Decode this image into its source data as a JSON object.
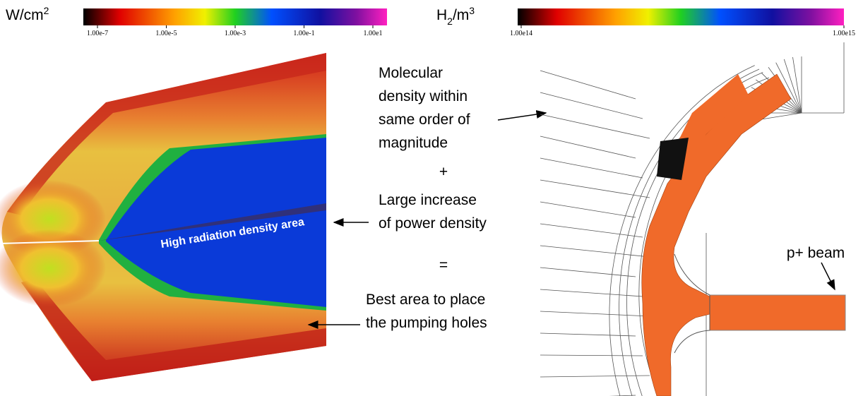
{
  "left_colorbar": {
    "unit": {
      "base": "W/cm",
      "sup": "2"
    },
    "ticks": [
      "1.00e-7",
      "1.00e-5",
      "1.00e-3",
      "1.00e-1",
      "1.00e1"
    ]
  },
  "right_colorbar": {
    "unit": {
      "base": "H",
      "sub": "2",
      "mid": "/m",
      "sup": "3"
    },
    "ticks": [
      "1.00e14",
      "1.00e15"
    ]
  },
  "left_image": {
    "label": "High radiation density area"
  },
  "annotations": {
    "molecular": [
      "Molecular",
      "density within",
      "same order of",
      "magnitude"
    ],
    "plus": "+",
    "increase": [
      "Large increase",
      "of power density"
    ],
    "equals": "=",
    "best": [
      "Best area to place",
      "the pumping holes"
    ]
  },
  "right_image": {
    "label": "p+ beam"
  }
}
